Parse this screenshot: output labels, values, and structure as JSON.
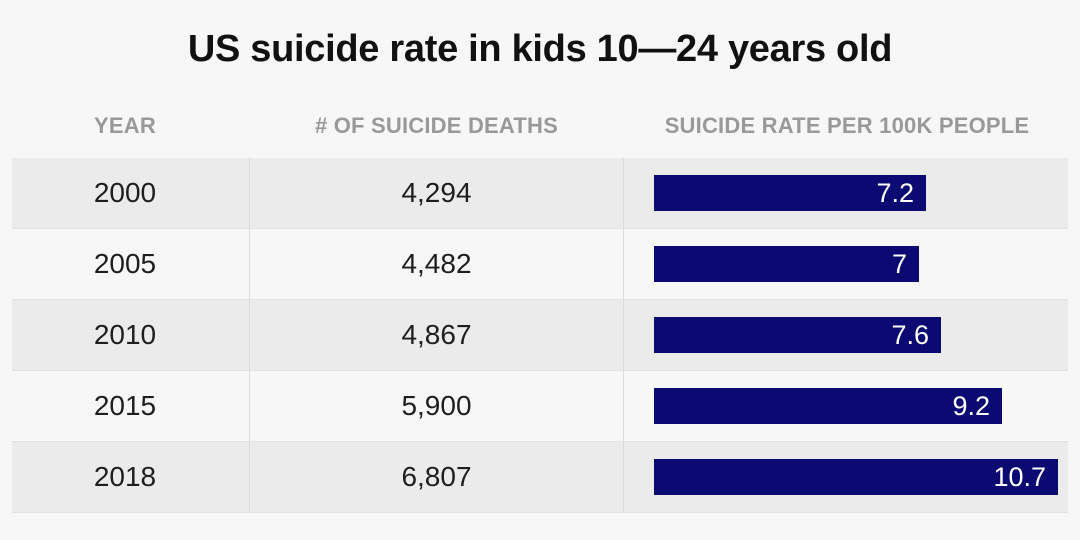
{
  "title": "US suicide rate in kids 10—24 years old",
  "headers": {
    "year": "YEAR",
    "deaths": "# OF SUICIDE DEATHS",
    "rate": "SUICIDE RATE PER 100K PEOPLE"
  },
  "chart_data": {
    "type": "table",
    "title": "US suicide rate in kids 10—24 years old",
    "columns": [
      "YEAR",
      "# OF SUICIDE DEATHS",
      "SUICIDE RATE PER 100K PEOPLE"
    ],
    "rows": [
      {
        "year": "2000",
        "deaths": "4,294",
        "rate": 7.2,
        "rate_label": "7.2"
      },
      {
        "year": "2005",
        "deaths": "4,482",
        "rate": 7,
        "rate_label": "7"
      },
      {
        "year": "2010",
        "deaths": "4,867",
        "rate": 7.6,
        "rate_label": "7.6"
      },
      {
        "year": "2015",
        "deaths": "5,900",
        "rate": 9.2,
        "rate_label": "9.2"
      },
      {
        "year": "2018",
        "deaths": "6,807",
        "rate": 10.7,
        "rate_label": "10.7"
      }
    ],
    "bar_color": "#0b0a73"
  }
}
